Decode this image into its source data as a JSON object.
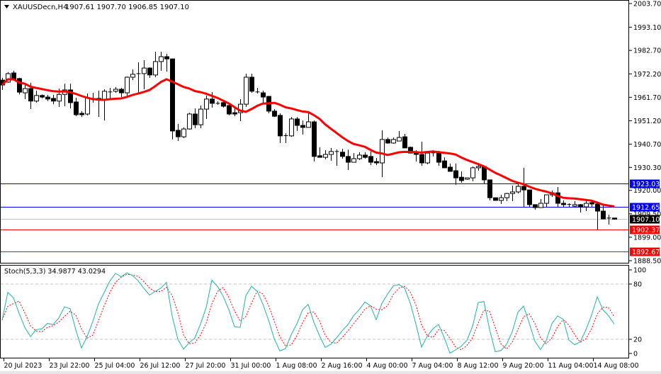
{
  "header": {
    "symbol_label": "XAUUSDecn,H4",
    "ohlc_label": "1907.61 1907.70 1906.85 1907.10",
    "collapse_icon": "triangle-down-icon"
  },
  "colors": {
    "bull_body": "#ffffff",
    "bear_body": "#000000",
    "moving_average": "#ff0000",
    "resistance_line": "#0000ff",
    "support_line": "#ff0000",
    "bid_line": "#c0c0c0",
    "stoch_main": "#20b2aa",
    "stoch_signal": "#ff0000"
  },
  "chart_data": [
    {
      "type": "candlestick",
      "symbol": "XAUUSDecn",
      "timeframe": "H4",
      "ylim": [
        1888.5,
        2003.7
      ],
      "y_ticks": [
        "2003.70",
        "1993.10",
        "1982.70",
        "1972.20",
        "1961.70",
        "1951.20",
        "1940.70",
        "1930.30",
        "1920.00",
        "1909.50",
        "1899.00",
        "1888.50"
      ],
      "x_ticks": [
        "20 Jul 2023",
        "23 Jul 22:00",
        "25 Jul 04:00",
        "26 Jul 12:00",
        "27 Jul 20:00",
        "31 Jul 00:00",
        "1 Aug 08:00",
        "2 Aug 16:00",
        "4 Aug 00:00",
        "7 Aug 04:00",
        "8 Aug 12:00",
        "9 Aug 20:00",
        "11 Aug 04:00",
        "14 Aug 08:00"
      ],
      "x_tick_every_bars": 8,
      "ohlc": [
        [
          1969.4,
          1970.4,
          1965.0,
          1967.2
        ],
        [
          1968.5,
          1973.0,
          1968.2,
          1972.3
        ],
        [
          1972.6,
          1973.6,
          1969.4,
          1969.8
        ],
        [
          1970.1,
          1970.4,
          1963.0,
          1964.0
        ],
        [
          1963.7,
          1967.2,
          1960.9,
          1965.6
        ],
        [
          1965.6,
          1968.2,
          1956.4,
          1960.0
        ],
        [
          1960.0,
          1964.7,
          1959.3,
          1962.5
        ],
        [
          1962.5,
          1963.0,
          1961.2,
          1961.8
        ],
        [
          1961.8,
          1962.8,
          1960.0,
          1960.9
        ],
        [
          1961.2,
          1962.8,
          1958.6,
          1960.0
        ],
        [
          1960.0,
          1965.6,
          1957.4,
          1963.0
        ],
        [
          1963.0,
          1967.8,
          1957.7,
          1965.0
        ],
        [
          1965.0,
          1967.8,
          1956.7,
          1959.3
        ],
        [
          1959.6,
          1961.5,
          1953.2,
          1953.9
        ],
        [
          1954.5,
          1955.5,
          1952.9,
          1953.9
        ],
        [
          1954.2,
          1963.4,
          1953.6,
          1961.5
        ],
        [
          1961.2,
          1963.7,
          1959.3,
          1960.9
        ],
        [
          1961.2,
          1964.7,
          1952.9,
          1960.6
        ],
        [
          1960.6,
          1965.3,
          1951.3,
          1964.4
        ],
        [
          1964.0,
          1965.9,
          1961.2,
          1964.1
        ],
        [
          1964.4,
          1966.3,
          1963.7,
          1965.3
        ],
        [
          1965.3,
          1965.9,
          1961.8,
          1963.7
        ],
        [
          1963.7,
          1971.0,
          1961.8,
          1970.7
        ],
        [
          1970.7,
          1974.2,
          1969.4,
          1972.0
        ],
        [
          1972.3,
          1977.4,
          1963.4,
          1972.0
        ],
        [
          1972.3,
          1978.3,
          1965.3,
          1974.8
        ],
        [
          1974.8,
          1975.1,
          1970.4,
          1971.7
        ],
        [
          1971.7,
          1982.1,
          1970.7,
          1977.7
        ],
        [
          1977.7,
          1982.1,
          1973.6,
          1979.9
        ],
        [
          1979.9,
          1981.2,
          1973.2,
          1978.9
        ],
        [
          1978.9,
          1978.9,
          1942.8,
          1946.6
        ],
        [
          1946.9,
          1949.8,
          1942.1,
          1944.0
        ],
        [
          1944.0,
          1948.2,
          1943.4,
          1947.5
        ],
        [
          1947.5,
          1954.8,
          1947.2,
          1954.2
        ],
        [
          1954.2,
          1956.7,
          1947.8,
          1949.4
        ],
        [
          1949.4,
          1958.0,
          1947.8,
          1956.4
        ],
        [
          1956.4,
          1962.5,
          1952.0,
          1960.9
        ],
        [
          1960.9,
          1964.0,
          1957.1,
          1959.0
        ],
        [
          1959.0,
          1959.9,
          1958.3,
          1958.9
        ],
        [
          1959.3,
          1959.9,
          1957.1,
          1957.7
        ],
        [
          1958.0,
          1958.6,
          1953.6,
          1954.2
        ],
        [
          1954.8,
          1956.7,
          1953.2,
          1954.2
        ],
        [
          1954.8,
          1960.9,
          1951.0,
          1958.6
        ],
        [
          1958.6,
          1972.3,
          1957.4,
          1970.7
        ],
        [
          1970.7,
          1972.3,
          1963.7,
          1964.4
        ],
        [
          1964.1,
          1965.9,
          1963.4,
          1964.0
        ],
        [
          1963.7,
          1964.7,
          1959.0,
          1961.8
        ],
        [
          1962.1,
          1962.1,
          1954.5,
          1955.5
        ],
        [
          1955.5,
          1956.4,
          1952.9,
          1953.2
        ],
        [
          1953.6,
          1954.5,
          1941.2,
          1944.4
        ],
        [
          1944.5,
          1945.6,
          1941.2,
          1944.4
        ],
        [
          1944.4,
          1952.9,
          1944.0,
          1952.0
        ],
        [
          1952.0,
          1952.9,
          1946.6,
          1949.1
        ],
        [
          1949.1,
          1951.3,
          1945.0,
          1948.2
        ],
        [
          1948.2,
          1954.8,
          1948.2,
          1950.7
        ],
        [
          1950.7,
          1951.3,
          1932.9,
          1935.2
        ],
        [
          1935.5,
          1939.3,
          1934.8,
          1934.8
        ],
        [
          1934.8,
          1938.0,
          1933.9,
          1936.1
        ],
        [
          1936.1,
          1939.0,
          1933.3,
          1937.4
        ],
        [
          1937.4,
          1938.3,
          1931.0,
          1937.1
        ],
        [
          1937.1,
          1938.6,
          1934.2,
          1935.2
        ],
        [
          1935.2,
          1938.3,
          1929.1,
          1932.6
        ],
        [
          1932.6,
          1936.7,
          1932.6,
          1934.2
        ],
        [
          1934.2,
          1937.1,
          1933.6,
          1935.8
        ],
        [
          1935.8,
          1937.1,
          1934.2,
          1934.8
        ],
        [
          1935.2,
          1937.4,
          1931.3,
          1932.6
        ],
        [
          1932.9,
          1934.5,
          1931.3,
          1932.3
        ],
        [
          1932.3,
          1946.9,
          1925.9,
          1942.8
        ],
        [
          1942.8,
          1943.7,
          1940.9,
          1941.2
        ],
        [
          1941.2,
          1943.7,
          1940.9,
          1942.8
        ],
        [
          1942.1,
          1946.6,
          1942.1,
          1943.7
        ],
        [
          1944.0,
          1945.3,
          1939.0,
          1939.0
        ],
        [
          1939.3,
          1939.6,
          1936.7,
          1936.7
        ],
        [
          1937.1,
          1938.0,
          1932.9,
          1936.1
        ],
        [
          1936.1,
          1941.8,
          1931.0,
          1932.3
        ],
        [
          1932.3,
          1937.7,
          1931.7,
          1936.7
        ],
        [
          1936.8,
          1938.0,
          1935.2,
          1936.7
        ],
        [
          1936.7,
          1937.7,
          1931.0,
          1932.6
        ],
        [
          1933.2,
          1934.8,
          1930.1,
          1930.1
        ],
        [
          1930.4,
          1932.0,
          1928.5,
          1928.5
        ],
        [
          1928.8,
          1932.0,
          1922.5,
          1925.6
        ],
        [
          1925.9,
          1928.5,
          1923.4,
          1924.4
        ],
        [
          1925.0,
          1925.6,
          1924.7,
          1925.6
        ],
        [
          1925.6,
          1930.7,
          1924.1,
          1930.1
        ],
        [
          1930.1,
          1932.3,
          1928.8,
          1930.7
        ],
        [
          1930.7,
          1930.7,
          1923.1,
          1924.7
        ],
        [
          1924.7,
          1924.7,
          1915.5,
          1916.7
        ],
        [
          1916.7,
          1916.7,
          1915.5,
          1915.5
        ],
        [
          1915.5,
          1918.0,
          1913.9,
          1916.7
        ],
        [
          1916.7,
          1918.9,
          1915.2,
          1918.6
        ],
        [
          1918.6,
          1922.1,
          1915.2,
          1919.3
        ],
        [
          1919.3,
          1922.8,
          1918.6,
          1921.8
        ],
        [
          1921.8,
          1930.1,
          1912.6,
          1920.2
        ],
        [
          1920.2,
          1920.2,
          1912.6,
          1913.6
        ],
        [
          1913.6,
          1913.6,
          1911.3,
          1912.3
        ],
        [
          1912.3,
          1916.1,
          1912.3,
          1914.2
        ],
        [
          1914.2,
          1918.0,
          1912.6,
          1918.0
        ],
        [
          1918.0,
          1919.9,
          1917.1,
          1918.9
        ],
        [
          1918.9,
          1921.5,
          1912.6,
          1914.2
        ],
        [
          1914.2,
          1915.5,
          1912.3,
          1913.6
        ],
        [
          1913.7,
          1914.2,
          1912.6,
          1913.6
        ],
        [
          1912.9,
          1915.2,
          1912.3,
          1913.6
        ],
        [
          1913.6,
          1913.9,
          1910.1,
          1912.6
        ],
        [
          1912.6,
          1915.5,
          1910.7,
          1914.2
        ],
        [
          1914.5,
          1915.8,
          1912.6,
          1913.9
        ],
        [
          1913.9,
          1913.9,
          1902.4,
          1910.7
        ],
        [
          1910.7,
          1913.3,
          1907.2,
          1907.2
        ],
        [
          1907.5,
          1909.1,
          1904.7,
          1907.6
        ],
        [
          1907.61,
          1907.7,
          1906.85,
          1907.1
        ]
      ],
      "moving_average": {
        "type": "SMA",
        "source": "close",
        "period": 14
      },
      "horizontal_levels": [
        {
          "price": 1923.03,
          "label": "1923.03",
          "kind": "resistance"
        },
        {
          "price": 1912.65,
          "label": "1912.65",
          "kind": "resistance"
        },
        {
          "price": 1907.1,
          "label": "1907.10",
          "kind": "bid"
        },
        {
          "price": 1902.37,
          "label": "1902.37",
          "kind": "support"
        },
        {
          "price": 1892.67,
          "label": "1892.67",
          "kind": "support"
        }
      ]
    },
    {
      "type": "line",
      "indicator_label": "Stoch(5,3,3) 34.9877 43.0294",
      "params": {
        "k": 5,
        "d": 3,
        "slowing": 3
      },
      "ylim": [
        0,
        100
      ],
      "y_ticks": [
        "100",
        "80",
        "20",
        "0"
      ],
      "levels": [
        80,
        20
      ],
      "series": [
        {
          "role": "main"
        },
        {
          "role": "signal"
        }
      ]
    }
  ]
}
